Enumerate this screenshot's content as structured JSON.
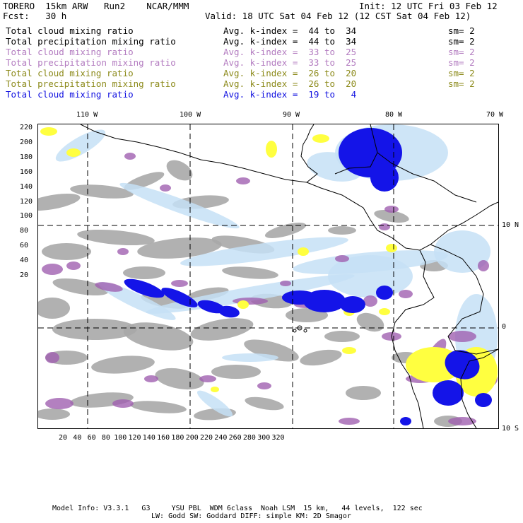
{
  "header": {
    "line1_left": "TORERO  15km ARW   Run2    NCAR/MMM",
    "line1_right": "Init: 12 UTC Fri 03 Feb 12",
    "line2_left": "Fcst:   30 h",
    "line2_right": "Valid: 18 UTC Sat 04 Feb 12 (12 CST Sat 04 Feb 12)"
  },
  "fields": [
    {
      "name": "Total cloud mixing ratio",
      "index": "Avg. k-index =  44 to  34",
      "sm": "sm= 2",
      "color": "#000000"
    },
    {
      "name": "Total precipitation mixing ratio",
      "index": "Avg. k-index =  44 to  34",
      "sm": "sm= 2",
      "color": "#000000"
    },
    {
      "name": "Total cloud mixing ratio",
      "index": "Avg. k-index =  33 to  25",
      "sm": "sm= 2",
      "color": "#b37cc0"
    },
    {
      "name": "Total precipitation mixing ratio",
      "index": "Avg. k-index =  33 to  25",
      "sm": "sm= 2",
      "color": "#b37cc0"
    },
    {
      "name": "Total cloud mixing ratio",
      "index": "Avg. k-index =  26 to  20",
      "sm": "sm= 2",
      "color": "#8c8a1a"
    },
    {
      "name": "Total precipitation mixing ratio",
      "index": "Avg. k-index =  26 to  20",
      "sm": "sm= 2",
      "color": "#8c8a1a"
    },
    {
      "name": "Total cloud mixing ratio",
      "index": "Avg. k-index =  19 to   4",
      "sm": "",
      "color": "#1010e0"
    }
  ],
  "map": {
    "longitude_labels": [
      "110 W",
      "100 W",
      "90 W",
      "80 W",
      "70 W"
    ],
    "latitude_labels": [
      "10 N",
      "0",
      "10 S"
    ],
    "y_ticks": [
      "220",
      "200",
      "180",
      "160",
      "140",
      "120",
      "100",
      "80",
      "60",
      "40",
      "20"
    ],
    "x_ticks": [
      "20",
      "40",
      "60",
      "80",
      "100",
      "120",
      "140",
      "160",
      "180",
      "200",
      "220",
      "240",
      "260",
      "280",
      "300",
      "320"
    ],
    "colors": {
      "gray_cloud": "#a8a8a8",
      "purple": "#a060b0",
      "light_blue": "#c6e0f6",
      "blue": "#1414e8",
      "yellow": "#ffff40",
      "coast": "#000000"
    }
  },
  "footer": {
    "line1": "Model Info: V3.3.1   G3     YSU PBL  WDM 6class  Noah LSM  15 km,   44 levels,  122 sec",
    "line2": "LW: Godd SW: Goddard DIFF: simple KM: 2D Smagor"
  }
}
